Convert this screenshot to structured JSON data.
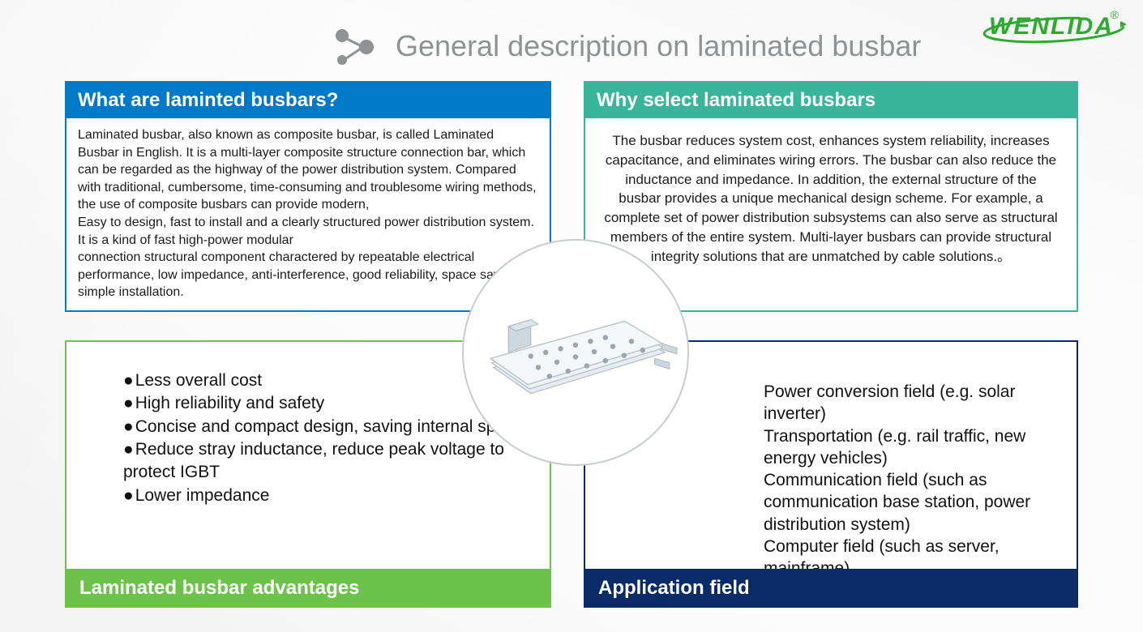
{
  "logo": {
    "text": "WENLIDA",
    "color": "#2eab2e",
    "trademark": "®"
  },
  "title": "General description on laminated busbar",
  "title_color": "#8f9294",
  "title_icon_color": "#8f9294",
  "panels": {
    "top_left": {
      "header": "What are laminted busbars?",
      "header_bg": "#0079c8",
      "border_color": "#0079c8",
      "body": "Laminated busbar, also known as composite busbar, is called Laminated Busbar in English. It is a multi-layer composite structure connection bar, which can be regarded as the highway of the power distribution system. Compared with traditional, cumbersome, time-consuming and troublesome wiring methods, the use of composite busbars can provide modern,\nEasy to design, fast to install and a clearly structured power distribution system. It is  a kind of fast high-power modular\nconnection structural component charactered by repeatable electrical performance, low impedance, anti-interference, good reliability, space saving, simple installation."
    },
    "top_right": {
      "header": "Why select laminated busbars",
      "header_bg": "#39b59b",
      "border_color": "#39b59b",
      "body": "The busbar reduces system cost, enhances system reliability, increases capacitance, and eliminates wiring errors. The busbar can also reduce the inductance and impedance. In addition, the external structure of the busbar provides a unique mechanical design scheme. For example, a complete set of power distribution subsystems can also serve as structural members of the entire system. Multi-layer busbars can provide structural integrity solutions that are unmatched by cable solutions.。"
    },
    "bottom_left": {
      "footer": "Laminated busbar advantages",
      "footer_bg": "#6cc24a",
      "border_color": "#6cc24a",
      "bullets": [
        "Less overall cost",
        "High reliability and safety",
        "Concise and compact design, saving internal space",
        "Reduce stray inductance, reduce peak voltage to protect IGBT",
        "Lower impedance"
      ]
    },
    "bottom_right": {
      "footer": "Application field",
      "footer_bg": "#0a2a68",
      "border_color": "#0a2a68",
      "lines": [
        "Power conversion field (e.g. solar inverter)",
        "Transportation (e.g. rail traffic, new energy vehicles)",
        "Communication field (such as communication base station, power distribution system)",
        "Computer field (such as server, mainframe)"
      ]
    }
  },
  "center_product": {
    "plate_fill": "#eef2f5",
    "plate_stroke": "#b9c2cb",
    "hole_fill": "#9aa6b2",
    "bracket_fill": "#cfd7de"
  }
}
